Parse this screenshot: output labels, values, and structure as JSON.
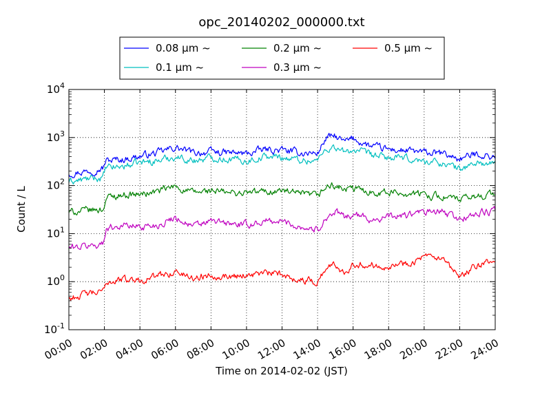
{
  "chart_data": {
    "type": "line",
    "title": "opc_20140202_000000.txt",
    "xlabel": "Time on 2014-02-02 (JST)",
    "ylabel": "Count / L",
    "yscale": "log",
    "ylim": [
      0.1,
      10000
    ],
    "xlim": [
      "00:00",
      "24:00"
    ],
    "grid": true,
    "legend_position": "top, above plot",
    "x_ticks": [
      "00:00",
      "02:00",
      "04:00",
      "06:00",
      "08:00",
      "10:00",
      "12:00",
      "14:00",
      "16:00",
      "18:00",
      "20:00",
      "22:00",
      "24:00"
    ],
    "y_ticks": [
      {
        "value": 0.1,
        "base": "10",
        "exp": "-1"
      },
      {
        "value": 1,
        "base": "10",
        "exp": "0"
      },
      {
        "value": 10,
        "base": "10",
        "exp": "1"
      },
      {
        "value": 100,
        "base": "10",
        "exp": "2"
      },
      {
        "value": 1000,
        "base": "10",
        "exp": "3"
      },
      {
        "value": 10000,
        "base": "10",
        "exp": "4"
      }
    ],
    "x": [
      "00:00",
      "01:00",
      "01:55",
      "02:05",
      "03:00",
      "04:00",
      "05:00",
      "06:00",
      "07:00",
      "08:00",
      "09:00",
      "10:00",
      "11:00",
      "12:00",
      "13:00",
      "14:00",
      "14:30",
      "15:00",
      "15:30",
      "16:00",
      "17:00",
      "18:00",
      "19:00",
      "20:00",
      "21:00",
      "22:00",
      "23:00",
      "24:00"
    ],
    "series": [
      {
        "name": "0.08 μm ~",
        "color": "#0000ff",
        "values": [
          180,
          200,
          230,
          330,
          350,
          410,
          480,
          620,
          480,
          500,
          480,
          460,
          560,
          540,
          480,
          470,
          1000,
          1050,
          800,
          950,
          650,
          560,
          530,
          480,
          460,
          360,
          460,
          390
        ]
      },
      {
        "name": "0.1 μm ~",
        "color": "#00bfbf",
        "values": [
          120,
          135,
          145,
          230,
          250,
          300,
          330,
          400,
          330,
          380,
          360,
          330,
          400,
          390,
          340,
          330,
          600,
          620,
          480,
          560,
          430,
          380,
          360,
          320,
          300,
          220,
          300,
          270
        ]
      },
      {
        "name": "0.2 μm ~",
        "color": "#008000",
        "values": [
          28,
          30,
          32,
          55,
          65,
          65,
          75,
          95,
          70,
          78,
          70,
          70,
          75,
          78,
          65,
          60,
          95,
          100,
          80,
          85,
          75,
          72,
          70,
          65,
          60,
          50,
          60,
          70
        ]
      },
      {
        "name": "0.3 μm ~",
        "color": "#bf00bf",
        "values": [
          5,
          5.5,
          6,
          13,
          15,
          14,
          15,
          22,
          14,
          18,
          16,
          15,
          18,
          18,
          14,
          12,
          22,
          28,
          22,
          25,
          20,
          22,
          24,
          28,
          28,
          20,
          26,
          30
        ]
      },
      {
        "name": "0.5 μm ~",
        "color": "#ff0000",
        "values": [
          0.45,
          0.55,
          0.6,
          1.0,
          1.1,
          1.1,
          1.3,
          1.6,
          1.2,
          1.4,
          1.3,
          1.4,
          1.5,
          1.4,
          1.1,
          1.0,
          2.0,
          2.2,
          1.6,
          2.4,
          2.2,
          2.2,
          2.4,
          3.2,
          2.8,
          1.2,
          2.2,
          2.6
        ]
      }
    ]
  }
}
